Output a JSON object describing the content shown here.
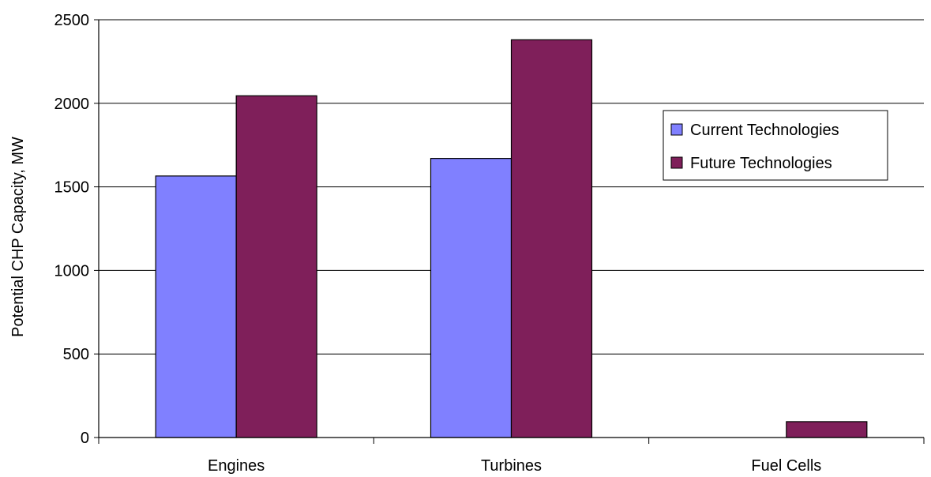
{
  "chart_data": {
    "type": "bar",
    "title": "",
    "xlabel": "",
    "ylabel": "Potential CHP Capacity, MW",
    "categories": [
      "Engines",
      "Turbines",
      "Fuel Cells"
    ],
    "series": [
      {
        "name": "Current Technologies",
        "color": "#8080ff",
        "values": [
          1565,
          1670,
          0
        ]
      },
      {
        "name": "Future Technologies",
        "color": "#7f1f5a",
        "values": [
          2045,
          2380,
          95
        ]
      }
    ],
    "ylim": [
      0,
      2500
    ],
    "yticks": [
      0,
      500,
      1000,
      1500,
      2000,
      2500
    ],
    "grid": true,
    "legend_position": "right"
  }
}
